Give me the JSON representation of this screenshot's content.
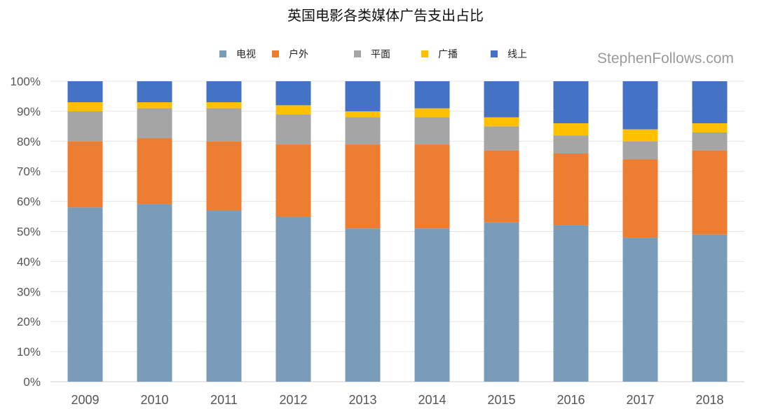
{
  "chart_data": {
    "type": "bar",
    "stacked": true,
    "title": "英国电影各类媒体广告支出占比",
    "watermark": "StephenFollows.com",
    "categories": [
      "2009",
      "2010",
      "2011",
      "2012",
      "2013",
      "2014",
      "2015",
      "2016",
      "2017",
      "2018"
    ],
    "y_ticks": [
      "0%",
      "10%",
      "20%",
      "30%",
      "40%",
      "50%",
      "60%",
      "70%",
      "80%",
      "90%",
      "100%"
    ],
    "ylim": [
      0,
      100
    ],
    "ylabel": "",
    "xlabel": "",
    "legend_position": "top",
    "series": [
      {
        "name": "电视",
        "color": "#7b9cb8",
        "values": [
          58,
          59,
          57,
          55,
          51,
          51,
          53,
          52,
          48,
          49
        ]
      },
      {
        "name": "户外",
        "color": "#ed7d31",
        "values": [
          22,
          22,
          23,
          24,
          28,
          28,
          24,
          24,
          26,
          28
        ]
      },
      {
        "name": "平面",
        "color": "#a5a5a5",
        "values": [
          10,
          10,
          11,
          10,
          9,
          9,
          8,
          6,
          6,
          6
        ]
      },
      {
        "name": "广播",
        "color": "#ffc000",
        "values": [
          3,
          2,
          2,
          3,
          2,
          3,
          3,
          4,
          4,
          3
        ]
      },
      {
        "name": "线上",
        "color": "#4472c4",
        "values": [
          7,
          7,
          7,
          8,
          10,
          9,
          12,
          14,
          16,
          14
        ]
      }
    ]
  }
}
